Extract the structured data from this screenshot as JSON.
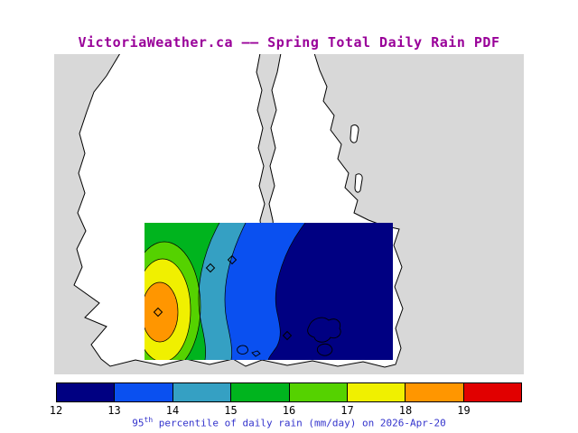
{
  "title": "VictoriaWeather.ca –– Spring Total Daily Rain PDF",
  "colors": {
    "title": "#990099",
    "caption": "#3333cc"
  },
  "map": {
    "water_color": "#d8d8d8",
    "land_color": "#ffffff"
  },
  "colorbar": {
    "tick_labels": [
      "12",
      "13",
      "14",
      "15",
      "16",
      "17",
      "18",
      "19"
    ],
    "colors": [
      "#000082",
      "#0a50f0",
      "#35a0c3",
      "#00b41e",
      "#55d200",
      "#f0f000",
      "#ff9600",
      "#e10000"
    ],
    "units_note": "mm/day",
    "caption": {
      "base": "95",
      "sup": "th",
      "rest": " percentile of daily rain (mm/day) on 2026-Apr-20"
    }
  }
}
